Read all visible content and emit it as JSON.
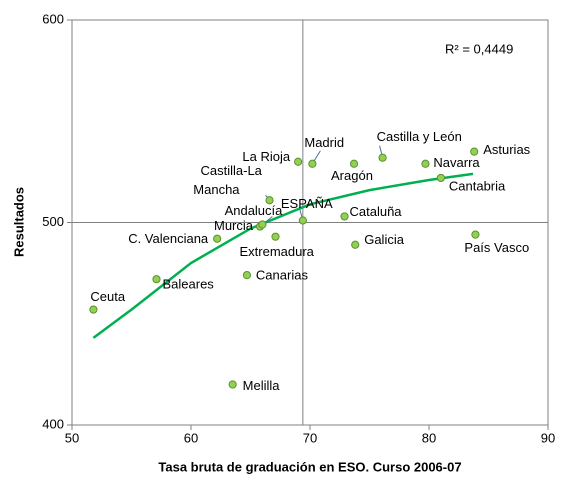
{
  "chart_data": {
    "type": "scatter",
    "xlabel": "Tasa bruta de graduación en ESO. Curso 2006-07",
    "ylabel": "Resultados",
    "annotation": "R² = 0,4449",
    "labels": [
      "Ceuta",
      "Baleares",
      "Melilla",
      "Canarias",
      "C. Valenciana",
      "Murcia",
      "Extremadura",
      "Andalucía",
      "Castilla-La Mancha",
      "ESPAÑA",
      "La Rioja",
      "Madrid",
      "Aragón",
      "Castilla y León",
      "Cataluña",
      "Galicia",
      "Navarra",
      "Cantabria",
      "Asturias",
      "País Vasco"
    ],
    "x": [
      51.8,
      57.1,
      63.5,
      64.7,
      62.2,
      65.8,
      67.1,
      66.0,
      66.6,
      69.4,
      69.0,
      70.2,
      73.7,
      76.1,
      72.9,
      73.8,
      79.7,
      81.0,
      83.8,
      83.9
    ],
    "values": [
      457,
      472,
      420,
      474,
      492,
      498,
      493,
      499,
      511,
      501,
      530,
      529,
      529,
      532,
      503,
      489,
      529,
      522,
      535,
      494
    ],
    "color": "#92d050",
    "trendline": {
      "color": "#00b050",
      "x": [
        51.8,
        55,
        60,
        65,
        70,
        75,
        80,
        83.7
      ],
      "values": [
        443,
        457,
        480,
        497,
        509,
        516,
        521,
        524
      ]
    },
    "reference_x": 69.4,
    "xlim": [
      50,
      90
    ],
    "xticks": [
      50,
      60,
      70,
      80,
      90
    ],
    "ylim": [
      400,
      600
    ],
    "yticks": [
      400,
      500,
      600
    ],
    "grid": true
  }
}
